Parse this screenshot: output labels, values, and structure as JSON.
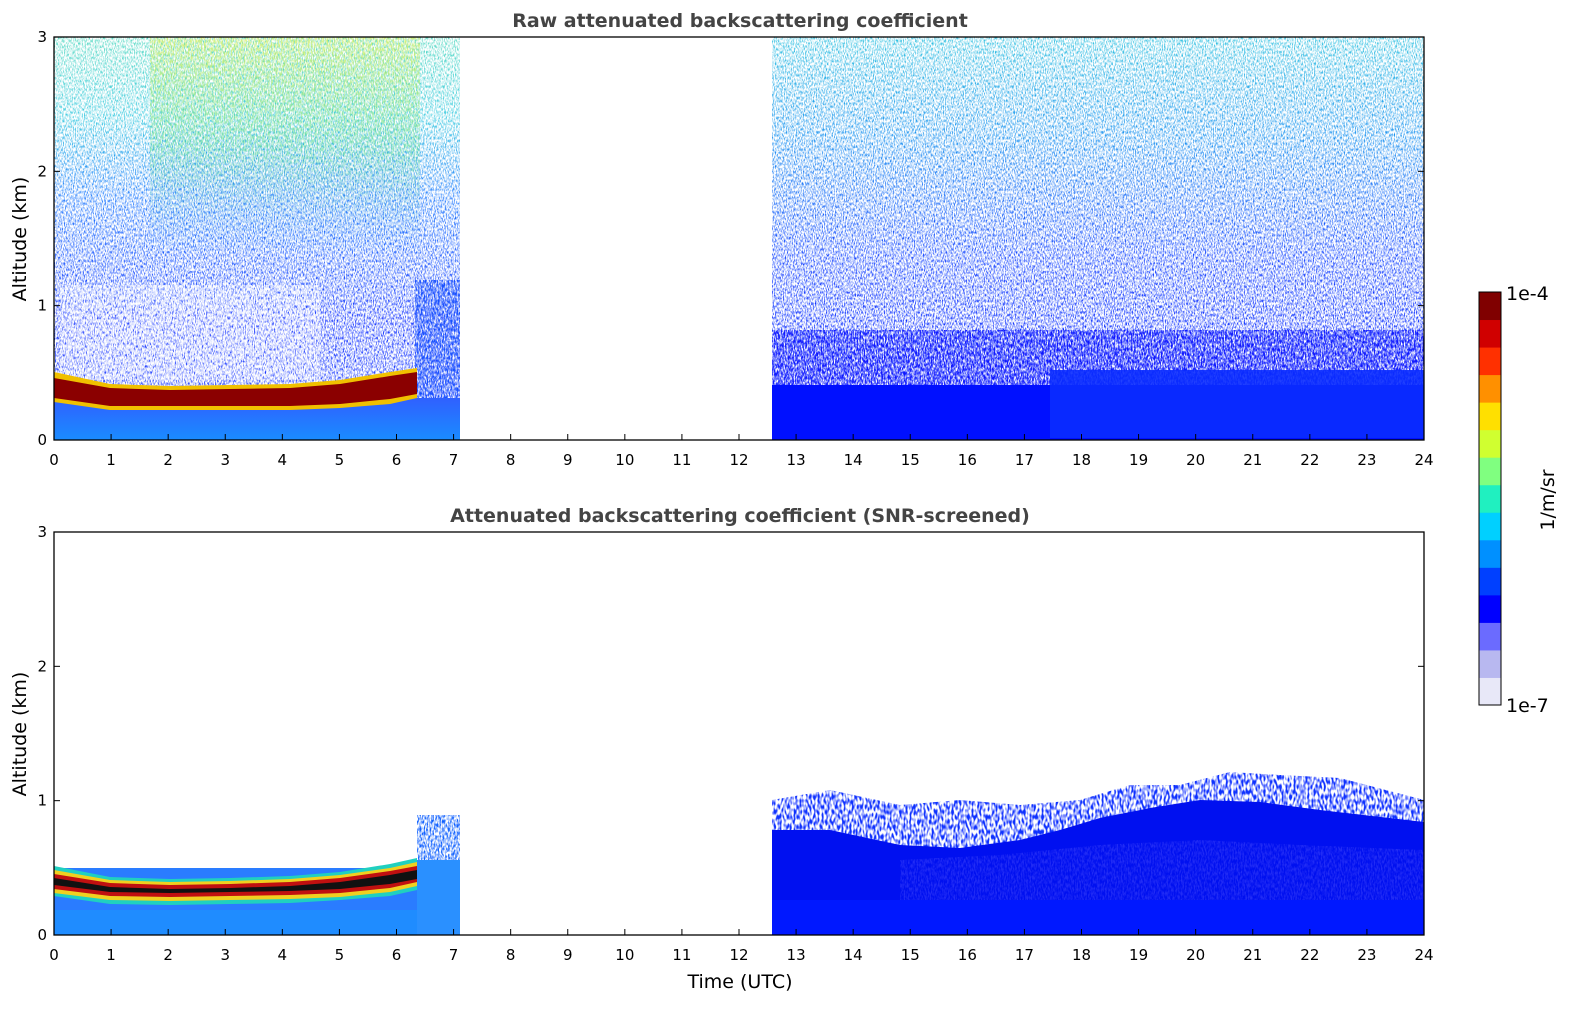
{
  "chart_data": [
    {
      "type": "heatmap",
      "title": "Raw attenuated backscattering coefficient",
      "xlabel": "",
      "ylabel": "Altitude (km)",
      "xlim": [
        0,
        24
      ],
      "ylim": [
        0,
        3
      ],
      "xticks": [
        "0",
        "1",
        "2",
        "3",
        "4",
        "5",
        "6",
        "7",
        "8",
        "9",
        "10",
        "11",
        "12",
        "13",
        "14",
        "15",
        "16",
        "17",
        "18",
        "19",
        "20",
        "21",
        "22",
        "23",
        "24"
      ],
      "yticks": [
        "0",
        "1",
        "2",
        "3"
      ],
      "data_segments": [
        {
          "x_start": 0.0,
          "x_end": 7.1,
          "description": "noisy profile with layer near 0.3 km"
        },
        {
          "x_start": 12.55,
          "x_end": 24.0,
          "description": "noisy profile"
        }
      ],
      "no_data_interval": [
        7.1,
        12.55
      ],
      "layer_top_km": [
        {
          "x": 0.0,
          "y": 0.42
        },
        {
          "x": 1.0,
          "y": 0.38
        },
        {
          "x": 2.0,
          "y": 0.38
        },
        {
          "x": 3.0,
          "y": 0.38
        },
        {
          "x": 4.0,
          "y": 0.39
        },
        {
          "x": 5.0,
          "y": 0.42
        },
        {
          "x": 6.0,
          "y": 0.47
        },
        {
          "x": 6.35,
          "y": 0.5
        }
      ],
      "grid": false
    },
    {
      "type": "heatmap",
      "title": "Attenuated backscattering coefficient (SNR-screened)",
      "xlabel": "Time (UTC)",
      "ylabel": "Altitude (km)",
      "xlim": [
        0,
        24
      ],
      "ylim": [
        0,
        3
      ],
      "xticks": [
        "0",
        "1",
        "2",
        "3",
        "4",
        "5",
        "6",
        "7",
        "8",
        "9",
        "10",
        "11",
        "12",
        "13",
        "14",
        "15",
        "16",
        "17",
        "18",
        "19",
        "20",
        "21",
        "22",
        "23",
        "24"
      ],
      "yticks": [
        "0",
        "1",
        "2",
        "3"
      ],
      "data_segments": [
        {
          "x_start": 0.0,
          "x_end": 7.1,
          "description": "screened signal below ~0.9 km"
        },
        {
          "x_start": 12.55,
          "x_end": 24.0,
          "description": "screened signal below ~1.2 km"
        }
      ],
      "no_data_interval": [
        7.1,
        12.55
      ],
      "grid": false
    }
  ],
  "colorbar": {
    "label": "1/m/sr",
    "max_label": "1e-4",
    "min_label": "1e-7",
    "scale": "log",
    "min_value": 1e-07,
    "max_value": 0.0001,
    "colormap": [
      "#e8e8f8",
      "#b8b8f0",
      "#6b6bff",
      "#0000ff",
      "#0040ff",
      "#0090ff",
      "#00d0ff",
      "#20f0c0",
      "#80ff80",
      "#d0ff30",
      "#ffe000",
      "#ff9000",
      "#ff3000",
      "#d00000",
      "#800000"
    ]
  }
}
